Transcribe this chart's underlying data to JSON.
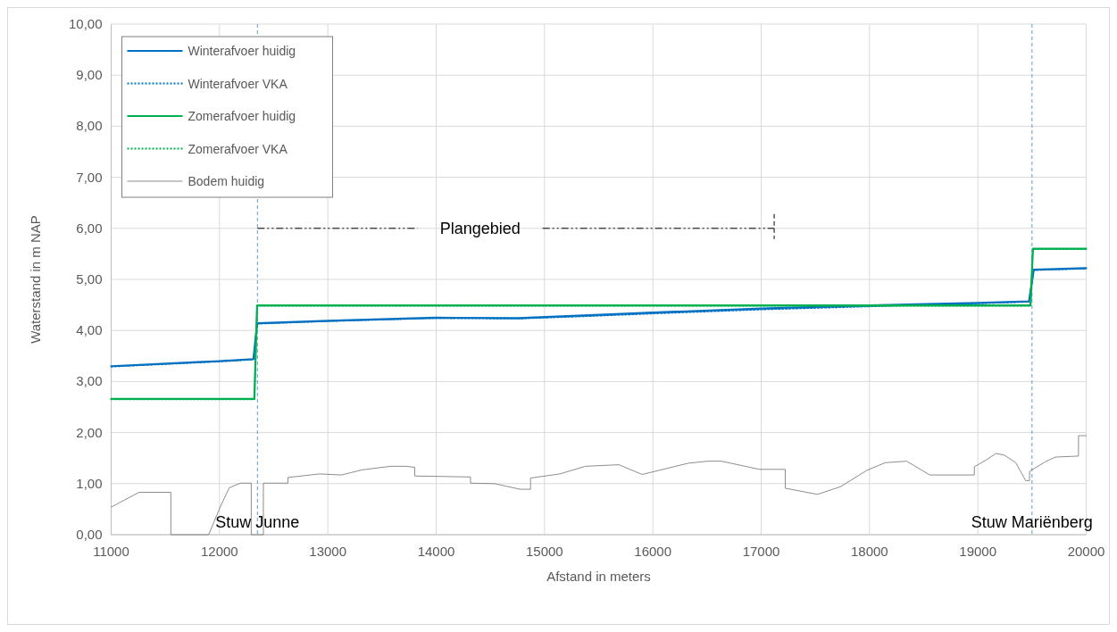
{
  "chart_data": {
    "type": "line",
    "xlabel": "Afstand in meters",
    "ylabel": "Waterstand in m NAP",
    "xlim": [
      11000,
      20000
    ],
    "xticks": [
      11000,
      12000,
      13000,
      14000,
      15000,
      16000,
      17000,
      18000,
      19000,
      20000
    ],
    "ylim": [
      0,
      10
    ],
    "yticks": [
      {
        "value": 0,
        "label": "0,00"
      },
      {
        "value": 1,
        "label": "1,00"
      },
      {
        "value": 2,
        "label": "2,00"
      },
      {
        "value": 3,
        "label": "3,00"
      },
      {
        "value": 4,
        "label": "4,00"
      },
      {
        "value": 5,
        "label": "5,00"
      },
      {
        "value": 6,
        "label": "6,00"
      },
      {
        "value": 7,
        "label": "7,00"
      },
      {
        "value": 8,
        "label": "8,00"
      },
      {
        "value": 9,
        "label": "9,00"
      },
      {
        "value": 10,
        "label": "10,00"
      }
    ],
    "grid": true,
    "legend": "top left",
    "series": [
      {
        "name": "Winterafvoer huidig",
        "color": "#0070c0",
        "line_style": "solid",
        "x": [
          11000,
          11800,
          12000,
          12314,
          12347,
          13000,
          13995,
          14759,
          15412,
          16000,
          17000,
          18006,
          19000,
          19472,
          19516,
          20000
        ],
        "values": [
          3.3,
          3.38,
          3.4,
          3.44,
          4.14,
          4.19,
          4.25,
          4.24,
          4.3,
          4.35,
          4.43,
          4.49,
          4.54,
          4.57,
          5.19,
          5.22
        ]
      },
      {
        "name": "Winterafvoer VKA",
        "color": "#0070c0",
        "line_style": "dotted",
        "x": [
          11000,
          11800,
          12000,
          12314,
          12347,
          13000,
          13995,
          14759,
          15412,
          16000,
          17000,
          18006,
          19000,
          19472,
          19516,
          20000
        ],
        "values": [
          3.29,
          3.37,
          3.39,
          3.43,
          4.13,
          4.18,
          4.24,
          4.23,
          4.28,
          4.33,
          4.41,
          4.47,
          4.53,
          4.56,
          5.18,
          5.21
        ]
      },
      {
        "name": "Zomerafvoer huidig",
        "color": "#00b050",
        "line_style": "solid",
        "x": [
          11000,
          12322,
          12347,
          19486,
          19508,
          20000
        ],
        "values": [
          2.66,
          2.66,
          4.49,
          4.49,
          5.6,
          5.6
        ]
      },
      {
        "name": "Zomerafvoer VKA",
        "color": "#00b050",
        "line_style": "dotted",
        "x": [
          11000,
          12322,
          12347,
          19486,
          19508,
          20000
        ],
        "values": [
          2.65,
          2.65,
          4.48,
          4.48,
          5.59,
          5.59
        ]
      },
      {
        "name": "Bodem huidig",
        "color": "#7f7f7f",
        "line_style": "solid",
        "x": [
          11000,
          11257,
          11551,
          11551,
          11900,
          12010,
          12090,
          12193,
          12293,
          12293,
          12405,
          12405,
          12632,
          12632,
          12920,
          13126,
          13317,
          13582,
          13714,
          13802,
          13802,
          14317,
          14317,
          14539,
          14774,
          14871,
          14871,
          15141,
          15377,
          15687,
          15901,
          16327,
          16511,
          16632,
          16984,
          17222,
          17222,
          17519,
          17732,
          17975,
          18144,
          18343,
          18556,
          18968,
          18968,
          19074,
          19167,
          19243,
          19350,
          19441,
          19477,
          19477,
          19623,
          19716,
          19929,
          19929,
          20000
        ],
        "values": [
          0.54,
          0.83,
          0.83,
          0,
          0,
          0.56,
          0.92,
          1.01,
          1.01,
          0,
          0,
          1.01,
          1.01,
          1.12,
          1.19,
          1.17,
          1.27,
          1.34,
          1.34,
          1.32,
          1.15,
          1.13,
          1.01,
          1.0,
          0.89,
          0.89,
          1.11,
          1.19,
          1.34,
          1.37,
          1.18,
          1.4,
          1.44,
          1.44,
          1.28,
          1.28,
          0.91,
          0.79,
          0.94,
          1.26,
          1.41,
          1.44,
          1.17,
          1.17,
          1.33,
          1.46,
          1.59,
          1.56,
          1.41,
          1.06,
          1.06,
          1.24,
          1.43,
          1.52,
          1.54,
          1.94,
          1.94
        ]
      }
    ],
    "ref_lines": [
      {
        "axis": "x",
        "value": 12350,
        "label": "Stuw Junne",
        "color": "#5b9bd5",
        "line_style": "dashed"
      },
      {
        "axis": "x",
        "value": 19500,
        "label": "Stuw Mariënberg",
        "color": "#5b9bd5",
        "line_style": "dashed"
      }
    ],
    "annotations": [
      "Plangebied"
    ]
  }
}
